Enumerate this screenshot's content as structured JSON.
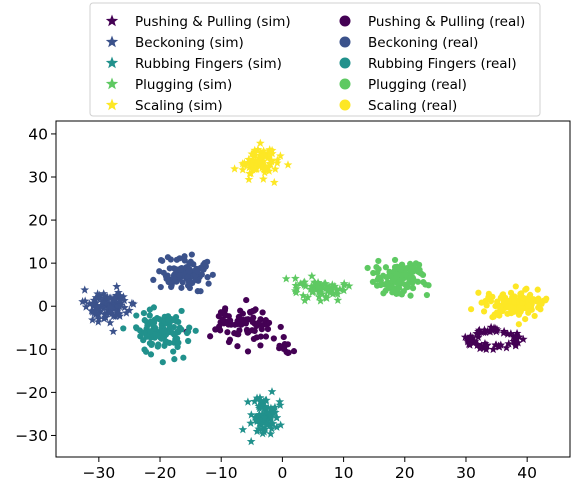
{
  "chart_data": {
    "type": "scatter",
    "title": "",
    "xlabel": "",
    "ylabel": "",
    "xlim": [
      -37,
      47
    ],
    "ylim": [
      -35,
      43
    ],
    "xticks": [
      -30,
      -20,
      -10,
      0,
      10,
      20,
      30,
      40
    ],
    "yticks": [
      -30,
      -20,
      -10,
      0,
      10,
      20,
      30,
      40
    ],
    "xtick_labels": [
      "−30",
      "−20",
      "−10",
      "0",
      "10",
      "20",
      "30",
      "40"
    ],
    "ytick_labels": [
      "−30",
      "−20",
      "−10",
      "0",
      "10",
      "20",
      "30",
      "40"
    ],
    "grid": false,
    "legend": {
      "placement": "top-center, outside above axes",
      "columns": 2,
      "entries": [
        {
          "label": "Pushing & Pulling (sim)",
          "marker": "star",
          "color": "#440154"
        },
        {
          "label": "Beckoning (sim)",
          "marker": "star",
          "color": "#3b528b"
        },
        {
          "label": "Rubbing Fingers (sim)",
          "marker": "star",
          "color": "#21918c"
        },
        {
          "label": "Plugging (sim)",
          "marker": "star",
          "color": "#5ec962"
        },
        {
          "label": "Scaling (sim)",
          "marker": "star",
          "color": "#fde725"
        },
        {
          "label": "Pushing & Pulling (real)",
          "marker": "circle",
          "color": "#440154"
        },
        {
          "label": "Beckoning (real)",
          "marker": "circle",
          "color": "#3b528b"
        },
        {
          "label": "Rubbing Fingers (real)",
          "marker": "circle",
          "color": "#21918c"
        },
        {
          "label": "Plugging (real)",
          "marker": "circle",
          "color": "#5ec962"
        },
        {
          "label": "Scaling (real)",
          "marker": "circle",
          "color": "#fde725"
        }
      ]
    },
    "clusters": [
      {
        "series": "Pushing & Pulling (sim)",
        "center": [
          34.5,
          -7.5
        ],
        "spread": [
          3.8,
          1.9
        ],
        "shape": "ring",
        "n": 70
      },
      {
        "series": "Beckoning (sim)",
        "center": [
          -28.5,
          0
        ],
        "spread": [
          3.0,
          2.8
        ],
        "n": 110
      },
      {
        "series": "Rubbing Fingers (sim)",
        "center": [
          -2.8,
          -25.5
        ],
        "spread": [
          1.8,
          3.4
        ],
        "n": 95
      },
      {
        "series": "Plugging (sim)",
        "center": [
          6,
          4
        ],
        "spread": [
          3.5,
          2.2
        ],
        "n": 70
      },
      {
        "series": "Scaling (sim)",
        "center": [
          -4,
          33.5
        ],
        "spread": [
          2.5,
          3.0
        ],
        "n": 90
      },
      {
        "series": "Pushing & Pulling (real)",
        "center": [
          -6,
          -4
        ],
        "spread": [
          4.0,
          3.8
        ],
        "n": 80
      },
      {
        "series": "Pushing & Pulling (real)",
        "center": [
          0,
          -10
        ],
        "spread": [
          1.4,
          1.5
        ],
        "n": 12
      },
      {
        "series": "Beckoning (real)",
        "center": [
          -16,
          7.5
        ],
        "spread": [
          3.8,
          3.2
        ],
        "n": 110
      },
      {
        "series": "Rubbing Fingers (real)",
        "center": [
          -19.5,
          -6
        ],
        "spread": [
          3.8,
          4.0
        ],
        "n": 110
      },
      {
        "series": "Plugging (real)",
        "center": [
          19,
          6.5
        ],
        "spread": [
          3.8,
          3.0
        ],
        "n": 110
      },
      {
        "series": "Scaling (real)",
        "center": [
          38,
          0.5
        ],
        "spread": [
          3.8,
          2.6
        ],
        "n": 140
      }
    ]
  }
}
